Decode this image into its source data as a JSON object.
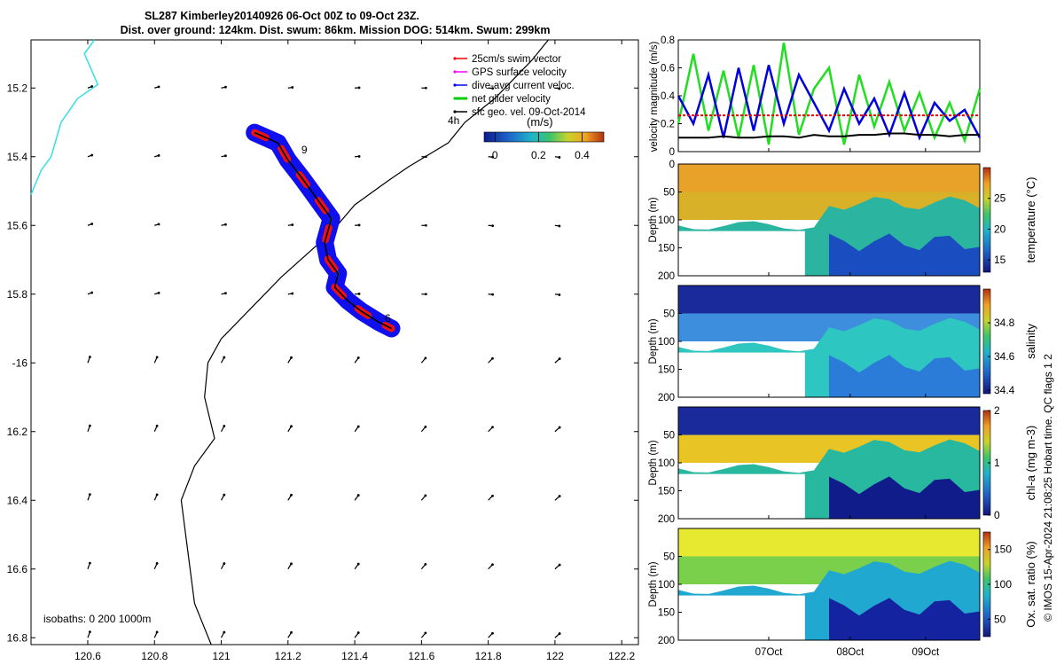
{
  "title": {
    "line1": "SL287 Kimberley20140926 06-Oct 00Z to 09-Oct 23Z.",
    "line2": "Dist. over ground: 124km. Dist. swum: 86km. Mission DOG: 514km. Swum: 299km"
  },
  "footer_vertical": "© IMOS 15-Apr-2024 21:08:25 Hobart time. QC flags 1  2",
  "chart_data": [
    {
      "id": "map",
      "type": "scatter",
      "title": "",
      "x_ticks": [
        120.6,
        120.8,
        121,
        121.2,
        121.4,
        121.6,
        121.8,
        122,
        122.2
      ],
      "y_ticks": [
        -15.2,
        -15.4,
        -15.6,
        -15.8,
        -16,
        -16.2,
        -16.4,
        -16.6,
        -16.8
      ],
      "x_tick_labels": [
        "120.6",
        "120.8",
        "121",
        "121.2",
        "121.4",
        "121.6",
        "121.8",
        "122",
        "122.2"
      ],
      "y_tick_labels": [
        "15.2",
        "15.4",
        "15.6",
        "15.8",
        "-16",
        "16.2",
        "16.4",
        "16.6",
        "16.8"
      ],
      "xlim": [
        120.43,
        122.25
      ],
      "ylim": [
        -16.82,
        -15.06
      ],
      "legend": [
        {
          "label": "25cm/s swim vector",
          "color": "#ff0000"
        },
        {
          "label": "GPS surface velocity",
          "color": "#ff00ff"
        },
        {
          "label": "dive-avg current veloc.",
          "color": "#0000ff"
        },
        {
          "label": "net glider velocity",
          "color": "#00cc00"
        },
        {
          "label": "sfc geo. vel. 09-Oct-2014",
          "color": "#000000"
        }
      ],
      "legend_note": "4h",
      "colorbar": {
        "label": "(m/s)",
        "ticks": [
          0,
          0.2,
          0.4
        ],
        "tick_labels": [
          "0",
          "0.2",
          "0.4"
        ],
        "range": [
          -0.05,
          0.5
        ]
      },
      "isobath_label": "isobaths: 0   200  1000m",
      "track_labels": [
        {
          "text": "9",
          "lon": 121.24,
          "lat": -15.39
        },
        {
          "text": "6",
          "lon": 121.49,
          "lat": -15.88
        }
      ],
      "track": [
        [
          121.1,
          -15.33
        ],
        [
          121.17,
          -15.36
        ],
        [
          121.2,
          -15.41
        ],
        [
          121.24,
          -15.46
        ],
        [
          121.27,
          -15.5
        ],
        [
          121.3,
          -15.54
        ],
        [
          121.33,
          -15.58
        ],
        [
          121.31,
          -15.65
        ],
        [
          121.32,
          -15.7
        ],
        [
          121.35,
          -15.74
        ],
        [
          121.34,
          -15.78
        ],
        [
          121.38,
          -15.82
        ],
        [
          121.42,
          -15.85
        ],
        [
          121.47,
          -15.88
        ],
        [
          121.51,
          -15.9
        ]
      ],
      "coastline": [
        [
          121.98,
          -15.06
        ],
        [
          121.93,
          -15.12
        ],
        [
          121.82,
          -15.23
        ],
        [
          121.73,
          -15.3
        ],
        [
          121.68,
          -15.36
        ],
        [
          121.56,
          -15.43
        ],
        [
          121.5,
          -15.47
        ],
        [
          121.4,
          -15.54
        ],
        [
          121.33,
          -15.62
        ],
        [
          121.18,
          -15.75
        ],
        [
          121.06,
          -15.87
        ],
        [
          121.0,
          -15.93
        ],
        [
          120.96,
          -16.0
        ],
        [
          120.95,
          -16.1
        ],
        [
          120.98,
          -16.22
        ],
        [
          120.92,
          -16.3
        ],
        [
          120.88,
          -16.4
        ],
        [
          120.9,
          -16.55
        ],
        [
          120.92,
          -16.7
        ],
        [
          120.97,
          -16.82
        ]
      ],
      "isobath": [
        [
          120.62,
          -15.06
        ],
        [
          120.59,
          -15.1
        ],
        [
          120.63,
          -15.19
        ],
        [
          120.57,
          -15.23
        ],
        [
          120.52,
          -15.3
        ],
        [
          120.49,
          -15.4
        ],
        [
          120.46,
          -15.44
        ],
        [
          120.43,
          -15.51
        ]
      ]
    },
    {
      "id": "velocity",
      "type": "line",
      "ylabel": "velocity magnitude (m/s)",
      "ylim": [
        0,
        0.8
      ],
      "y_ticks": [
        0,
        0.2,
        0.4,
        0.6,
        0.8
      ],
      "y_tick_labels": [
        "0",
        "0.2",
        "0.4",
        "0.6",
        "0.8"
      ],
      "x": [
        0,
        0.05,
        0.1,
        0.15,
        0.2,
        0.25,
        0.3,
        0.35,
        0.4,
        0.45,
        0.5,
        0.55,
        0.6,
        0.65,
        0.7,
        0.75,
        0.8,
        0.85,
        0.9,
        0.95,
        1
      ],
      "series": [
        {
          "name": "net glider velocity",
          "color": "#22dd22",
          "values": [
            0.2,
            0.7,
            0.15,
            0.58,
            0.1,
            0.62,
            0.05,
            0.78,
            0.12,
            0.45,
            0.6,
            0.05,
            0.55,
            0.18,
            0.5,
            0.15,
            0.42,
            0.1,
            0.35,
            0.08,
            0.45
          ]
        },
        {
          "name": "dive-avg current veloc.",
          "color": "#0000dd",
          "values": [
            0.4,
            0.2,
            0.55,
            0.1,
            0.6,
            0.15,
            0.62,
            0.2,
            0.55,
            0.35,
            0.15,
            0.45,
            0.2,
            0.38,
            0.12,
            0.42,
            0.1,
            0.35,
            0.22,
            0.3,
            0.1
          ]
        },
        {
          "name": "25cm/s swim vector",
          "color": "#ee0000",
          "values": [
            0.26,
            0.26,
            0.26,
            0.26,
            0.26,
            0.26,
            0.26,
            0.26,
            0.26,
            0.26,
            0.26,
            0.26,
            0.26,
            0.26,
            0.26,
            0.26,
            0.26,
            0.26,
            0.26,
            0.26,
            0.26
          ]
        },
        {
          "name": "sfc geo. vel.",
          "color": "#000000",
          "values": [
            0.1,
            0.1,
            0.1,
            0.11,
            0.1,
            0.1,
            0.11,
            0.11,
            0.1,
            0.12,
            0.11,
            0.11,
            0.12,
            0.12,
            0.13,
            0.13,
            0.12,
            0.12,
            0.11,
            0.12,
            0.12
          ]
        }
      ]
    },
    {
      "id": "temperature",
      "type": "heatmap",
      "ylabel": "Depth (m)",
      "cbar_label": "temperature (°C)",
      "cbar_ticks": [
        15,
        20,
        25
      ],
      "cbar_tick_labels": [
        "15",
        "20",
        "25"
      ],
      "cbar_range": [
        13,
        30
      ],
      "y_ticks": [
        0,
        50,
        100,
        150,
        200
      ],
      "y_tick_labels": [
        "0",
        "50",
        "100",
        "150",
        "200"
      ],
      "ylim": [
        0,
        200
      ]
    },
    {
      "id": "salinity",
      "type": "heatmap",
      "ylabel": "Depth (m)",
      "cbar_label": "salinity",
      "cbar_ticks": [
        34.4,
        34.6,
        34.8
      ],
      "cbar_tick_labels": [
        "34.4",
        "34.6",
        "34.8"
      ],
      "cbar_range": [
        34.38,
        35.0
      ],
      "y_ticks": [
        50,
        100,
        150,
        200
      ],
      "y_tick_labels": [
        "50",
        "100",
        "150",
        "200"
      ],
      "ylim": [
        0,
        200
      ]
    },
    {
      "id": "chla",
      "type": "heatmap",
      "ylabel": "Depth (m)",
      "cbar_label": "chl-a (mg m-3)",
      "cbar_ticks": [
        0,
        1,
        2
      ],
      "cbar_tick_labels": [
        "0",
        "1",
        "2"
      ],
      "cbar_range": [
        0,
        2
      ],
      "y_ticks": [
        50,
        100,
        150,
        200
      ],
      "y_tick_labels": [
        "50",
        "100",
        "150",
        "200"
      ],
      "ylim": [
        0,
        200
      ]
    },
    {
      "id": "oxygen",
      "type": "heatmap",
      "ylabel": "Depth (m)",
      "cbar_label": "Ox. sat. ratio (%)",
      "cbar_ticks": [
        50,
        100,
        150
      ],
      "cbar_tick_labels": [
        "50",
        "100",
        "150"
      ],
      "cbar_range": [
        25,
        175
      ],
      "y_ticks": [
        50,
        100,
        150,
        200
      ],
      "y_tick_labels": [
        "50",
        "100",
        "150",
        "200"
      ],
      "ylim": [
        0,
        200
      ],
      "x_tick_labels": [
        "07Oct",
        "08Oct",
        "09Oct"
      ],
      "x_ticks": [
        0.3,
        0.57,
        0.82
      ]
    }
  ]
}
